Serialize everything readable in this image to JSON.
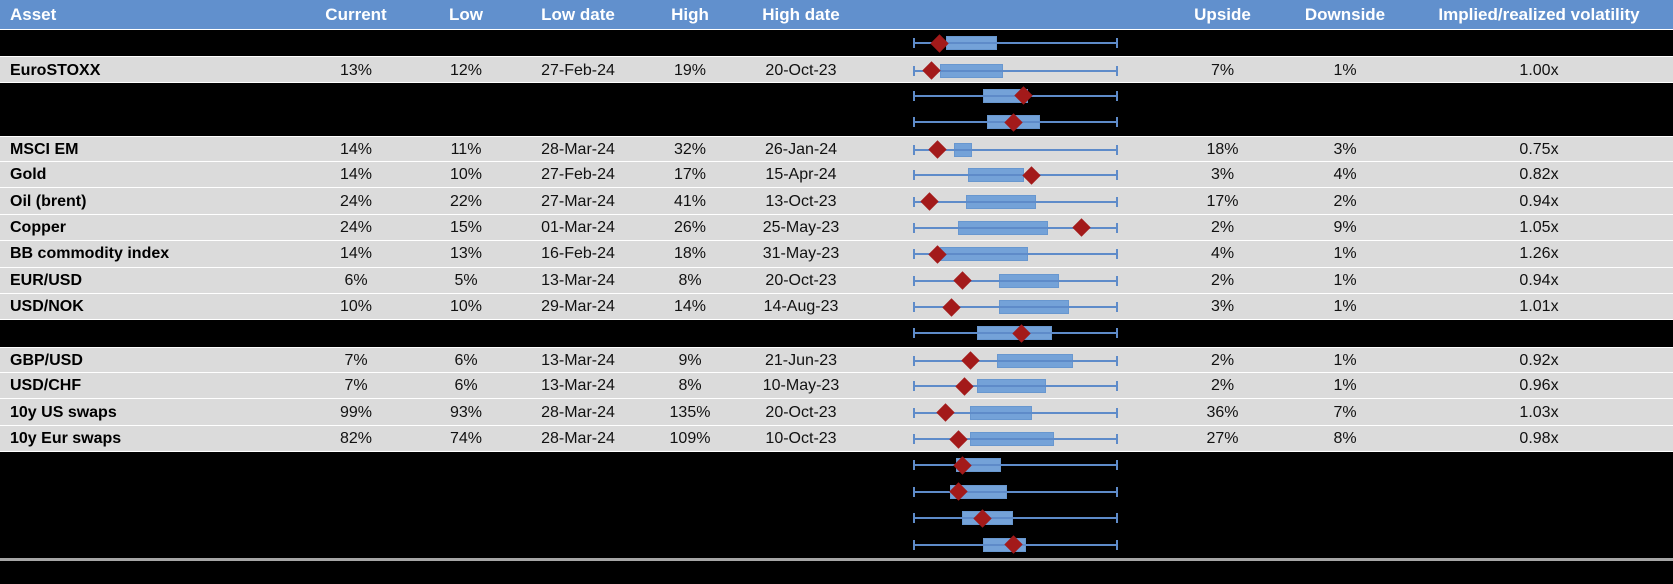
{
  "colors": {
    "header_bg": "#6190CD",
    "visible_row_bg": "#DBDBDB",
    "hidden_row_bg": "#000000",
    "box_fill": "#74A2D8",
    "whisker": "#5E8BC9",
    "marker": "#A31A1A",
    "footer_line": "#A6A6A6"
  },
  "chart_data": {
    "type": "table",
    "columns": [
      "Asset",
      "Current",
      "Low",
      "Low date",
      "High",
      "High date",
      "Upside",
      "Downside",
      "Implied/realized volatility"
    ],
    "boxplot_note": "Each row has a horizontal boxplot: whiskers span the full low-high range (normalized 0-1), blue box = interquartile band, red diamond = current level. Black rows are hidden/blacked-out rows whose boxplots remain visible.",
    "rows": [
      {
        "hidden": true,
        "box": [
          0.16,
          0.41
        ],
        "marker": 0.13
      },
      {
        "hidden": false,
        "cells": {
          "asset": "EuroSTOXX",
          "current": "13%",
          "low": "12%",
          "low_date": "27-Feb-24",
          "high": "19%",
          "high_date": "20-Oct-23",
          "upside": "7%",
          "downside": "1%",
          "implied_realized": "1.00x"
        },
        "box": [
          0.13,
          0.44
        ],
        "marker": 0.09
      },
      {
        "hidden": true,
        "box": [
          0.34,
          0.56
        ],
        "marker": 0.54
      },
      {
        "hidden": true,
        "box": [
          0.36,
          0.62
        ],
        "marker": 0.49
      },
      {
        "hidden": false,
        "cells": {
          "asset": "MSCI EM",
          "current": "14%",
          "low": "11%",
          "low_date": "28-Mar-24",
          "high": "32%",
          "high_date": "26-Jan-24",
          "upside": "18%",
          "downside": "3%",
          "implied_realized": "0.75x"
        },
        "box": [
          0.2,
          0.29
        ],
        "marker": 0.12
      },
      {
        "hidden": false,
        "cells": {
          "asset": "Gold",
          "current": "14%",
          "low": "10%",
          "low_date": "27-Feb-24",
          "high": "17%",
          "high_date": "15-Apr-24",
          "upside": "3%",
          "downside": "4%",
          "implied_realized": "0.82x"
        },
        "box": [
          0.27,
          0.54
        ],
        "marker": 0.58
      },
      {
        "hidden": false,
        "cells": {
          "asset": "Oil (brent)",
          "current": "24%",
          "low": "22%",
          "low_date": "27-Mar-24",
          "high": "41%",
          "high_date": "13-Oct-23",
          "upside": "17%",
          "downside": "2%",
          "implied_realized": "0.94x"
        },
        "box": [
          0.26,
          0.6
        ],
        "marker": 0.08
      },
      {
        "hidden": false,
        "cells": {
          "asset": "Copper",
          "current": "24%",
          "low": "15%",
          "low_date": "01-Mar-24",
          "high": "26%",
          "high_date": "25-May-23",
          "upside": "2%",
          "downside": "9%",
          "implied_realized": "1.05x"
        },
        "box": [
          0.22,
          0.66
        ],
        "marker": 0.82
      },
      {
        "hidden": false,
        "cells": {
          "asset": "BB commodity index",
          "current": "14%",
          "low": "13%",
          "low_date": "16-Feb-24",
          "high": "18%",
          "high_date": "31-May-23",
          "upside": "4%",
          "downside": "1%",
          "implied_realized": "1.26x"
        },
        "box": [
          0.13,
          0.56
        ],
        "marker": 0.12
      },
      {
        "hidden": false,
        "cells": {
          "asset": "EUR/USD",
          "current": "6%",
          "low": "5%",
          "low_date": "13-Mar-24",
          "high": "8%",
          "high_date": "20-Oct-23",
          "upside": "2%",
          "downside": "1%",
          "implied_realized": "0.94x"
        },
        "box": [
          0.42,
          0.71
        ],
        "marker": 0.24
      },
      {
        "hidden": false,
        "cells": {
          "asset": "USD/NOK",
          "current": "10%",
          "low": "10%",
          "low_date": "29-Mar-24",
          "high": "14%",
          "high_date": "14-Aug-23",
          "upside": "3%",
          "downside": "1%",
          "implied_realized": "1.01x"
        },
        "box": [
          0.42,
          0.76
        ],
        "marker": 0.19
      },
      {
        "hidden": true,
        "box": [
          0.31,
          0.68
        ],
        "marker": 0.53
      },
      {
        "hidden": false,
        "cells": {
          "asset": "GBP/USD",
          "current": "7%",
          "low": "6%",
          "low_date": "13-Mar-24",
          "high": "9%",
          "high_date": "21-Jun-23",
          "upside": "2%",
          "downside": "1%",
          "implied_realized": "0.92x"
        },
        "box": [
          0.41,
          0.78
        ],
        "marker": 0.28
      },
      {
        "hidden": false,
        "cells": {
          "asset": "USD/CHF",
          "current": "7%",
          "low": "6%",
          "low_date": "13-Mar-24",
          "high": "8%",
          "high_date": "10-May-23",
          "upside": "2%",
          "downside": "1%",
          "implied_realized": "0.96x"
        },
        "box": [
          0.31,
          0.65
        ],
        "marker": 0.25
      },
      {
        "hidden": false,
        "cells": {
          "asset": "10y US swaps",
          "current": "99%",
          "low": "93%",
          "low_date": "28-Mar-24",
          "high": "135%",
          "high_date": "20-Oct-23",
          "upside": "36%",
          "downside": "7%",
          "implied_realized": "1.03x"
        },
        "box": [
          0.28,
          0.58
        ],
        "marker": 0.16
      },
      {
        "hidden": false,
        "cells": {
          "asset": "10y Eur swaps",
          "current": "82%",
          "low": "74%",
          "low_date": "28-Mar-24",
          "high": "109%",
          "high_date": "10-Oct-23",
          "upside": "27%",
          "downside": "8%",
          "implied_realized": "0.98x"
        },
        "box": [
          0.28,
          0.69
        ],
        "marker": 0.22
      },
      {
        "hidden": true,
        "box": [
          0.21,
          0.43
        ],
        "marker": 0.24
      },
      {
        "hidden": true,
        "box": [
          0.18,
          0.46
        ],
        "marker": 0.22
      },
      {
        "hidden": true,
        "box": [
          0.24,
          0.49
        ],
        "marker": 0.34
      },
      {
        "hidden": true,
        "box": [
          0.34,
          0.55
        ],
        "marker": 0.49
      }
    ]
  }
}
